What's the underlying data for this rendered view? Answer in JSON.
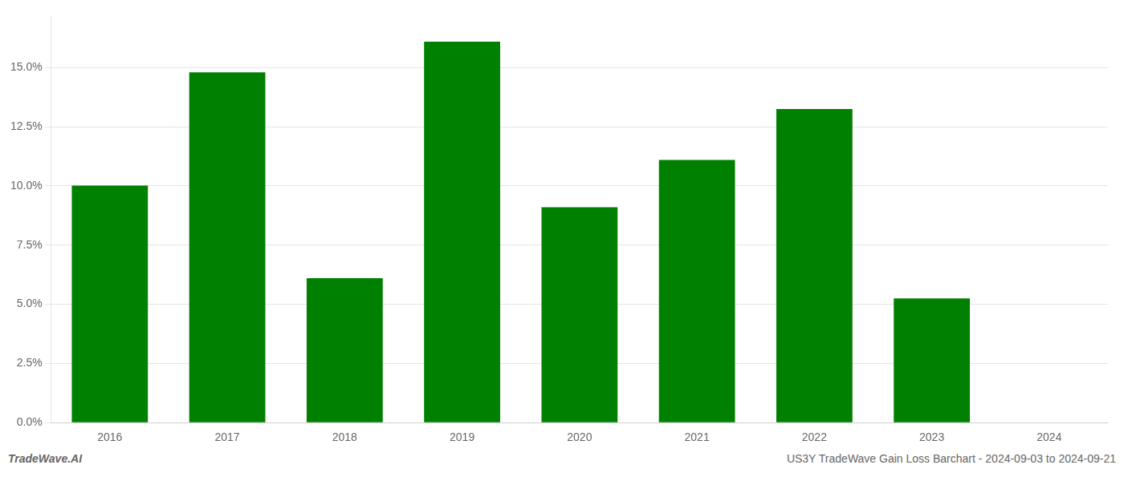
{
  "chart_data": {
    "type": "bar",
    "categories": [
      "2016",
      "2017",
      "2018",
      "2019",
      "2020",
      "2021",
      "2022",
      "2023",
      "2024"
    ],
    "values": [
      0.1002,
      0.148,
      0.061,
      0.161,
      0.091,
      0.111,
      0.1325,
      0.0525,
      0.0
    ],
    "color": "#008000",
    "ylim": [
      0,
      0.172
    ],
    "yticks": [
      {
        "value": 0.0,
        "label": "0.0%"
      },
      {
        "value": 0.025,
        "label": "2.5%"
      },
      {
        "value": 0.05,
        "label": "5.0%"
      },
      {
        "value": 0.075,
        "label": "7.5%"
      },
      {
        "value": 0.1,
        "label": "10.0%"
      },
      {
        "value": 0.125,
        "label": "12.5%"
      },
      {
        "value": 0.15,
        "label": "15.0%"
      }
    ],
    "grid": true,
    "annotations": [
      "TradeWave.AI",
      "US3Y TradeWave Gain Loss Barchart - 2024-09-03 to 2024-09-21"
    ]
  }
}
